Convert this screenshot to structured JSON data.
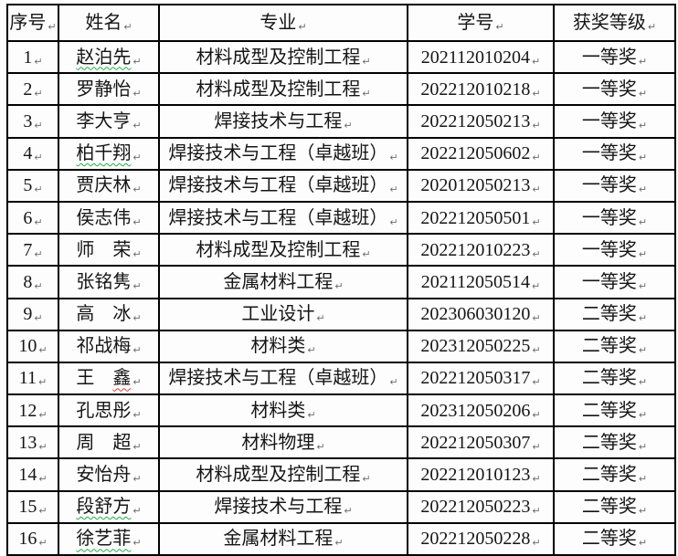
{
  "page": {
    "background": "#ffffff",
    "description_mark": "end-of-cell formatting mark"
  },
  "marks": {
    "cell_end_mark": "↵"
  },
  "colors": {
    "border": "#000000",
    "text": "#151515",
    "squiggle_green": "#24ae46",
    "squiggle_red": "#e03a3a"
  },
  "table": {
    "headers": [
      {
        "key": "no",
        "label": "序号"
      },
      {
        "key": "name",
        "label": "姓名"
      },
      {
        "key": "major",
        "label": "专业"
      },
      {
        "key": "student-id",
        "label": "学号"
      },
      {
        "key": "award",
        "label": "获奖等级"
      }
    ],
    "rows": [
      {
        "no": "1",
        "name_segments": [
          {
            "text": "赵泊先",
            "squiggle": "green"
          }
        ],
        "major": "材料成型及控制工程",
        "student_id": "202112010204",
        "award": "一等奖"
      },
      {
        "no": "2",
        "name_segments": [
          {
            "text": "罗静怡",
            "squiggle": ""
          }
        ],
        "major": "材料成型及控制工程",
        "student_id": "202212010218",
        "award": "一等奖"
      },
      {
        "no": "3",
        "name_segments": [
          {
            "text": "李大亨",
            "squiggle": ""
          }
        ],
        "major": "焊接技术与工程",
        "student_id": "202212050213",
        "award": "一等奖"
      },
      {
        "no": "4",
        "name_segments": [
          {
            "text": "柏千翔",
            "squiggle": "green"
          }
        ],
        "major": "焊接技术与工程（卓越班）",
        "student_id": "202212050602",
        "award": "一等奖"
      },
      {
        "no": "5",
        "name_segments": [
          {
            "text": "贾庆林",
            "squiggle": ""
          }
        ],
        "major": "焊接技术与工程（卓越班）",
        "student_id": "202012050213",
        "award": "一等奖"
      },
      {
        "no": "6",
        "name_segments": [
          {
            "text": "侯志伟",
            "squiggle": ""
          }
        ],
        "major": "焊接技术与工程（卓越班）",
        "student_id": "202212050501",
        "award": "一等奖"
      },
      {
        "no": "7",
        "name_segments": [
          {
            "text": "师　荣",
            "squiggle": ""
          }
        ],
        "major": "材料成型及控制工程",
        "student_id": "202212010223",
        "award": "一等奖"
      },
      {
        "no": "8",
        "name_segments": [
          {
            "text": "张铭隽",
            "squiggle": ""
          }
        ],
        "major": "金属材料工程",
        "student_id": "202112050514",
        "award": "一等奖"
      },
      {
        "no": "9",
        "name_segments": [
          {
            "text": "高　冰",
            "squiggle": ""
          }
        ],
        "major": "工业设计",
        "student_id": "202306030120",
        "award": "二等奖"
      },
      {
        "no": "10",
        "name_segments": [
          {
            "text": "祁战梅",
            "squiggle": ""
          }
        ],
        "major": "材料类",
        "student_id": "202312050225",
        "award": "二等奖"
      },
      {
        "no": "11",
        "name_segments": [
          {
            "text": "王　",
            "squiggle": ""
          },
          {
            "text": "鑫",
            "squiggle": "red"
          }
        ],
        "major": "焊接技术与工程（卓越班）",
        "student_id": "202212050317",
        "award": "二等奖"
      },
      {
        "no": "12",
        "name_segments": [
          {
            "text": "孔思彤",
            "squiggle": ""
          }
        ],
        "major": "材料类",
        "student_id": "202312050206",
        "award": "二等奖"
      },
      {
        "no": "13",
        "name_segments": [
          {
            "text": "周　超",
            "squiggle": ""
          }
        ],
        "major": "材料物理",
        "student_id": "202212050307",
        "award": "二等奖"
      },
      {
        "no": "14",
        "name_segments": [
          {
            "text": "安怡舟",
            "squiggle": ""
          }
        ],
        "major": "材料成型及控制工程",
        "student_id": "202212010123",
        "award": "二等奖"
      },
      {
        "no": "15",
        "name_segments": [
          {
            "text": "段舒方",
            "squiggle": "green"
          }
        ],
        "major": "焊接技术与工程",
        "student_id": "202212050223",
        "award": "二等奖"
      },
      {
        "no": "16",
        "name_segments": [
          {
            "text": "徐艺菲",
            "squiggle": "green"
          }
        ],
        "major": "金属材料工程",
        "student_id": "202212050228",
        "award": "二等奖"
      }
    ]
  }
}
